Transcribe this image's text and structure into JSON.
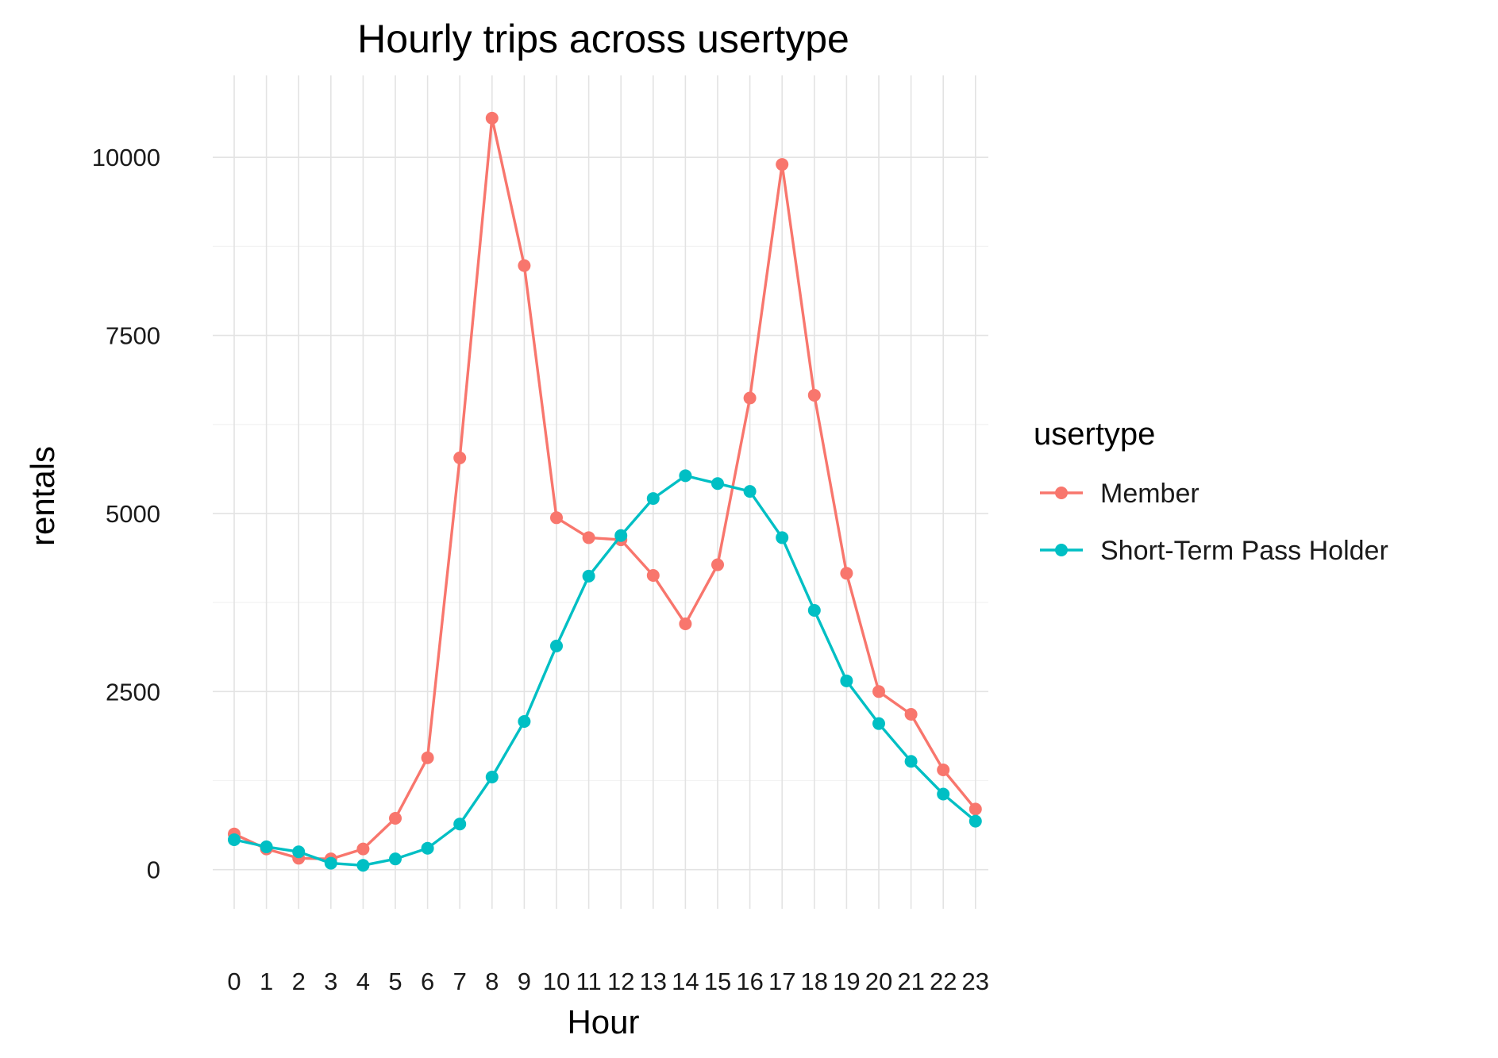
{
  "chart_data": {
    "type": "line",
    "title": "Hourly trips across usertype",
    "xlabel": "Hour",
    "ylabel": "rentals",
    "x": [
      0,
      1,
      2,
      3,
      4,
      5,
      6,
      7,
      8,
      9,
      10,
      11,
      12,
      13,
      14,
      15,
      16,
      17,
      18,
      19,
      20,
      21,
      22,
      23
    ],
    "x_tick_labels": [
      "0",
      "1",
      "2",
      "3",
      "4",
      "5",
      "6",
      "7",
      "8",
      "9",
      "10",
      "11",
      "12",
      "13",
      "14",
      "15",
      "16",
      "17",
      "18",
      "19",
      "20",
      "21",
      "22",
      "23"
    ],
    "ylim": [
      -550,
      11150
    ],
    "y_ticks": [
      0,
      2500,
      5000,
      7500,
      10000
    ],
    "y_tick_labels": [
      "0",
      "2500",
      "5000",
      "7500",
      "10000"
    ],
    "grid": true,
    "legend": {
      "title": "usertype",
      "placement": "right"
    },
    "series": [
      {
        "name": "Member",
        "color": "#F8766D",
        "values": [
          500,
          290,
          160,
          150,
          290,
          720,
          1570,
          5780,
          10550,
          8480,
          4940,
          4660,
          4630,
          4130,
          3450,
          4280,
          6620,
          9900,
          6660,
          4160,
          2500,
          2180,
          1400,
          850
        ]
      },
      {
        "name": "Short-Term Pass Holder",
        "color": "#00BFC4",
        "values": [
          420,
          320,
          250,
          90,
          60,
          150,
          300,
          640,
          1300,
          2080,
          3140,
          4120,
          4690,
          5210,
          5530,
          5420,
          5310,
          4660,
          3640,
          2650,
          2050,
          1520,
          1060,
          680
        ]
      }
    ]
  }
}
